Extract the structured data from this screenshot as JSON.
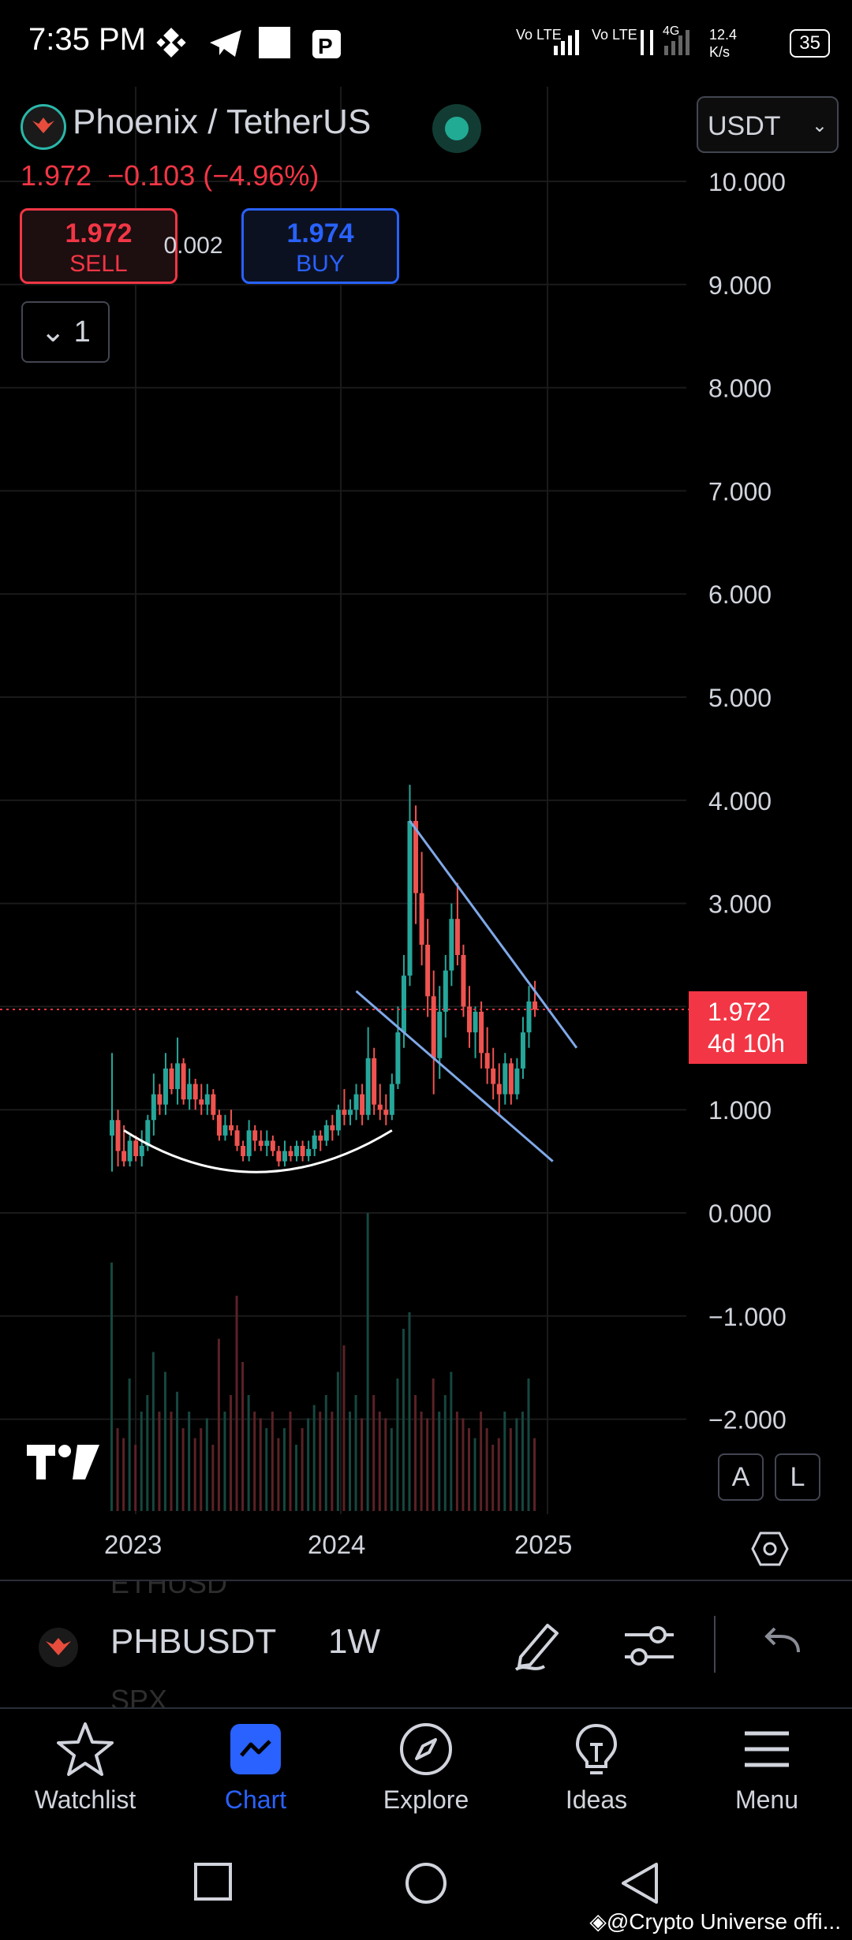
{
  "status_bar": {
    "time": "7:35 PM",
    "network_speed": "12.4\nK/s",
    "net_speed_value": "12.4",
    "net_speed_unit": "K/s",
    "battery": "35",
    "signal_labels": [
      "Vo LTE",
      "Vo LTE",
      "4G"
    ]
  },
  "header": {
    "symbol_title": "Phoenix / TetherUS",
    "last_price": "1.972",
    "change": "−0.103",
    "change_pct": "(−4.96%)",
    "currency": "USDT",
    "sell_price": "1.972",
    "sell_label": "SELL",
    "spread": "0.002",
    "buy_price": "1.974",
    "buy_label": "BUY",
    "collapse_count": "1"
  },
  "price_label": {
    "price": "1.972",
    "countdown": "4d 10h"
  },
  "scale_buttons": {
    "auto": "A",
    "log": "L"
  },
  "chart_data": {
    "type": "candlestick",
    "yaxis": {
      "ticks": [
        "10.000",
        "9.000",
        "8.000",
        "7.000",
        "6.000",
        "5.000",
        "4.000",
        "3.000",
        "2.000",
        "1.000",
        "0.000",
        "−1.000",
        "−2.000"
      ],
      "ylim": [
        -2.5,
        10.6
      ]
    },
    "xaxis": {
      "ticks": [
        "2023",
        "2024",
        "2025"
      ]
    },
    "last_price": 1.972,
    "candles": [
      [
        0.75,
        1.55,
        0.4,
        0.9
      ],
      [
        0.9,
        1.0,
        0.45,
        0.6
      ],
      [
        0.6,
        0.85,
        0.45,
        0.5
      ],
      [
        0.5,
        0.75,
        0.45,
        0.7
      ],
      [
        0.7,
        0.75,
        0.5,
        0.55
      ],
      [
        0.55,
        0.8,
        0.45,
        0.65
      ],
      [
        0.65,
        0.95,
        0.6,
        0.9
      ],
      [
        0.9,
        1.35,
        0.75,
        1.15
      ],
      [
        1.15,
        1.25,
        0.95,
        1.05
      ],
      [
        1.05,
        1.55,
        0.95,
        1.4
      ],
      [
        1.4,
        1.45,
        1.15,
        1.2
      ],
      [
        1.2,
        1.7,
        1.05,
        1.45
      ],
      [
        1.45,
        1.5,
        1.05,
        1.1
      ],
      [
        1.1,
        1.4,
        1.0,
        1.25
      ],
      [
        1.25,
        1.3,
        1.0,
        1.1
      ],
      [
        1.1,
        1.25,
        0.95,
        1.05
      ],
      [
        1.05,
        1.25,
        0.95,
        1.15
      ],
      [
        1.15,
        1.2,
        0.9,
        0.95
      ],
      [
        0.95,
        1.0,
        0.7,
        0.75
      ],
      [
        0.75,
        0.95,
        0.7,
        0.85
      ],
      [
        0.85,
        1.0,
        0.75,
        0.8
      ],
      [
        0.8,
        0.85,
        0.6,
        0.65
      ],
      [
        0.65,
        0.7,
        0.5,
        0.55
      ],
      [
        0.55,
        0.9,
        0.5,
        0.8
      ],
      [
        0.8,
        0.85,
        0.6,
        0.7
      ],
      [
        0.7,
        0.8,
        0.6,
        0.65
      ],
      [
        0.65,
        0.8,
        0.55,
        0.7
      ],
      [
        0.7,
        0.75,
        0.55,
        0.6
      ],
      [
        0.6,
        0.65,
        0.45,
        0.5
      ],
      [
        0.5,
        0.7,
        0.45,
        0.6
      ],
      [
        0.6,
        0.65,
        0.5,
        0.55
      ],
      [
        0.55,
        0.7,
        0.5,
        0.65
      ],
      [
        0.65,
        0.7,
        0.5,
        0.55
      ],
      [
        0.55,
        0.7,
        0.5,
        0.62
      ],
      [
        0.62,
        0.8,
        0.55,
        0.75
      ],
      [
        0.75,
        0.8,
        0.6,
        0.7
      ],
      [
        0.7,
        0.9,
        0.65,
        0.85
      ],
      [
        0.85,
        0.95,
        0.7,
        0.8
      ],
      [
        0.8,
        1.05,
        0.75,
        1.0
      ],
      [
        1.0,
        1.2,
        0.85,
        0.95
      ],
      [
        0.95,
        1.1,
        0.85,
        1.0
      ],
      [
        1.0,
        1.25,
        0.9,
        1.15
      ],
      [
        1.15,
        1.25,
        0.85,
        0.95
      ],
      [
        0.95,
        1.8,
        0.9,
        1.5
      ],
      [
        1.5,
        1.6,
        0.95,
        1.05
      ],
      [
        1.05,
        1.25,
        0.9,
        1.0
      ],
      [
        1.0,
        1.15,
        0.85,
        0.95
      ],
      [
        0.95,
        1.35,
        0.9,
        1.25
      ],
      [
        1.25,
        2.0,
        1.2,
        1.75
      ],
      [
        1.75,
        2.5,
        1.6,
        2.3
      ],
      [
        2.3,
        4.15,
        2.2,
        3.8
      ],
      [
        3.8,
        3.95,
        2.8,
        3.1
      ],
      [
        3.1,
        3.5,
        2.4,
        2.6
      ],
      [
        2.6,
        2.85,
        1.9,
        2.1
      ],
      [
        2.1,
        2.35,
        1.15,
        1.5
      ],
      [
        1.5,
        2.2,
        1.3,
        1.95
      ],
      [
        1.95,
        2.5,
        1.7,
        2.35
      ],
      [
        2.35,
        3.0,
        2.2,
        2.85
      ],
      [
        2.85,
        3.2,
        2.4,
        2.5
      ],
      [
        2.5,
        2.6,
        1.9,
        2.0
      ],
      [
        2.0,
        2.2,
        1.6,
        1.75
      ],
      [
        1.75,
        2.0,
        1.5,
        1.95
      ],
      [
        1.95,
        2.05,
        1.4,
        1.55
      ],
      [
        1.55,
        1.8,
        1.25,
        1.4
      ],
      [
        1.4,
        1.6,
        1.1,
        1.25
      ],
      [
        1.25,
        1.45,
        0.95,
        1.15
      ],
      [
        1.15,
        1.55,
        1.05,
        1.45
      ],
      [
        1.45,
        1.5,
        1.05,
        1.15
      ],
      [
        1.15,
        1.5,
        1.1,
        1.4
      ],
      [
        1.4,
        1.9,
        1.3,
        1.75
      ],
      [
        1.75,
        2.2,
        1.6,
        2.05
      ],
      [
        2.05,
        2.25,
        1.9,
        1.97
      ]
    ],
    "volume_relative": [
      0.75,
      0.25,
      0.22,
      0.4,
      0.2,
      0.3,
      0.35,
      0.48,
      0.3,
      0.42,
      0.3,
      0.36,
      0.25,
      0.3,
      0.22,
      0.25,
      0.28,
      0.2,
      0.52,
      0.3,
      0.35,
      0.65,
      0.45,
      0.35,
      0.3,
      0.28,
      0.25,
      0.3,
      0.22,
      0.25,
      0.3,
      0.2,
      0.25,
      0.28,
      0.32,
      0.3,
      0.35,
      0.3,
      0.42,
      0.5,
      0.3,
      0.35,
      0.28,
      0.9,
      0.35,
      0.3,
      0.28,
      0.25,
      0.4,
      0.55,
      0.6,
      0.35,
      0.3,
      0.28,
      0.4,
      0.3,
      0.35,
      0.42,
      0.3,
      0.28,
      0.25,
      0.22,
      0.3,
      0.25,
      0.2,
      0.22,
      0.3,
      0.25,
      0.28,
      0.3,
      0.4,
      0.22
    ],
    "annotations": {
      "rounding_bottom": {
        "from": [
          2,
          0.8
        ],
        "mid": [
          24,
          0.45
        ],
        "to": [
          47,
          0.8
        ]
      },
      "channel_upper": {
        "from": [
          50,
          3.8
        ],
        "to": [
          78,
          1.6
        ]
      },
      "channel_lower": {
        "from": [
          41,
          2.15
        ],
        "to": [
          74,
          0.5
        ]
      }
    },
    "colors": {
      "up": "#26a69a",
      "down": "#ef5350",
      "channel": "#7fa8e8",
      "arc": "#ffffff",
      "price_line": "#f23645"
    }
  },
  "symbol_bar": {
    "symbol": "PHBUSDT",
    "interval": "1W",
    "ghost_above": "ETHUSD",
    "ghost_below": "SPX"
  },
  "bottom_nav": [
    {
      "label": "Watchlist",
      "icon": "star-icon"
    },
    {
      "label": "Chart",
      "icon": "chart-icon",
      "active": true
    },
    {
      "label": "Explore",
      "icon": "compass-icon"
    },
    {
      "label": "Ideas",
      "icon": "lightbulb-icon"
    },
    {
      "label": "Menu",
      "icon": "hamburger-icon"
    }
  ],
  "watermark": "@Crypto Universe offi..."
}
